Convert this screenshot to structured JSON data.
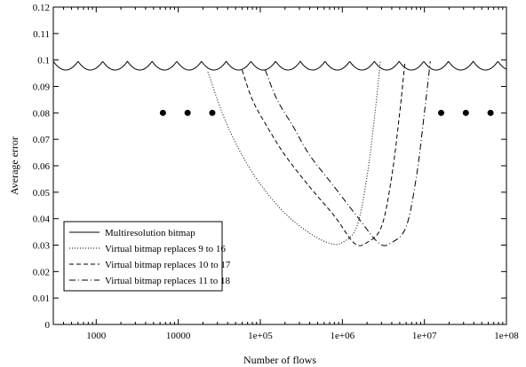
{
  "chart_data": {
    "type": "line",
    "title": "",
    "xlabel": "Number of flows",
    "ylabel": "Average error",
    "x_scale": "log",
    "xlim": [
      300,
      100000000
    ],
    "ylim": [
      0,
      0.12
    ],
    "grid": false,
    "legend_position": "bottom-left",
    "x_ticks": [
      {
        "value": 1000,
        "label": "1000"
      },
      {
        "value": 10000,
        "label": "10000"
      },
      {
        "value": 100000,
        "label": "1e+05"
      },
      {
        "value": 1000000,
        "label": "1e+06"
      },
      {
        "value": 10000000,
        "label": "1e+07"
      },
      {
        "value": 100000000,
        "label": "1e+08"
      }
    ],
    "y_ticks": [
      {
        "value": 0,
        "label": "0"
      },
      {
        "value": 0.01,
        "label": "0.01"
      },
      {
        "value": 0.02,
        "label": "0.02"
      },
      {
        "value": 0.03,
        "label": "0.03"
      },
      {
        "value": 0.04,
        "label": "0.04"
      },
      {
        "value": 0.05,
        "label": "0.05"
      },
      {
        "value": 0.06,
        "label": "0.06"
      },
      {
        "value": 0.07,
        "label": "0.07"
      },
      {
        "value": 0.08,
        "label": "0.08"
      },
      {
        "value": 0.09,
        "label": "0.09"
      },
      {
        "value": 0.1,
        "label": "0.1"
      },
      {
        "value": 0.11,
        "label": "0.11"
      },
      {
        "value": 0.12,
        "label": "0.12"
      }
    ],
    "series": [
      {
        "name": "Multiresolution bitmap",
        "dash": "solid",
        "scallop": {
          "x_start": 300,
          "x_end": 100000000,
          "period_factor": 2,
          "y_low": 0.0962,
          "y_high": 0.0995
        }
      },
      {
        "name": "Virtual bitmap replaces 9 to 16",
        "dash": "dotted",
        "points": [
          [
            23000,
            0.0955
          ],
          [
            30000,
            0.085
          ],
          [
            40000,
            0.075
          ],
          [
            60000,
            0.064
          ],
          [
            100000,
            0.053
          ],
          [
            200000,
            0.042
          ],
          [
            400000,
            0.0345
          ],
          [
            700000,
            0.0307
          ],
          [
            1000000,
            0.031
          ],
          [
            1500000,
            0.037
          ],
          [
            2000000,
            0.056
          ],
          [
            2500000,
            0.08
          ],
          [
            2900000,
            0.0995
          ]
        ]
      },
      {
        "name": "Virtual bitmap replaces 10 to 17",
        "dash": "dashed",
        "points": [
          [
            60000,
            0.0962
          ],
          [
            80000,
            0.085
          ],
          [
            120000,
            0.075
          ],
          [
            200000,
            0.064
          ],
          [
            400000,
            0.052
          ],
          [
            800000,
            0.041
          ],
          [
            1400000,
            0.0307
          ],
          [
            2000000,
            0.031
          ],
          [
            3000000,
            0.037
          ],
          [
            4000000,
            0.056
          ],
          [
            5000000,
            0.08
          ],
          [
            5800000,
            0.0995
          ]
        ]
      },
      {
        "name": "Virtual bitmap replaces 11 to 18",
        "dash": "dashdot",
        "points": [
          [
            115000,
            0.0962
          ],
          [
            160000,
            0.085
          ],
          [
            250000,
            0.075
          ],
          [
            400000,
            0.064
          ],
          [
            800000,
            0.052
          ],
          [
            1500000,
            0.041
          ],
          [
            2800000,
            0.0307
          ],
          [
            4000000,
            0.031
          ],
          [
            6000000,
            0.037
          ],
          [
            8000000,
            0.056
          ],
          [
            10000000,
            0.08
          ],
          [
            11800000,
            0.0995
          ]
        ]
      }
    ],
    "dots": [
      {
        "x": 6500,
        "y": 0.08
      },
      {
        "x": 13000,
        "y": 0.08
      },
      {
        "x": 26000,
        "y": 0.08
      },
      {
        "x": 16000000,
        "y": 0.08
      },
      {
        "x": 32000000,
        "y": 0.08
      },
      {
        "x": 64000000,
        "y": 0.08
      }
    ]
  }
}
